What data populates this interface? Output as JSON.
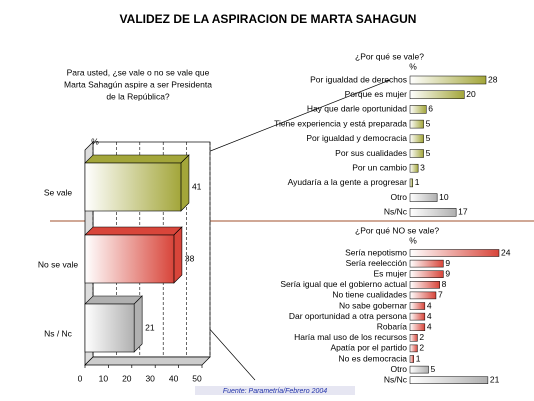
{
  "chart_data": [
    {
      "type": "barh",
      "title": "VALIDEZ DE LA ASPIRACION DE MARTA SAHAGUN",
      "question": [
        "Para usted, ¿se vale o no se vale que",
        "Marta Sahagún aspire a ser Presidenta",
        "de la República?"
      ],
      "source": "Fuente: Parametría/Febrero 2004",
      "axis_label": "%",
      "categories": [
        "Se vale",
        "No se vale",
        "Ns / Nc"
      ],
      "values": [
        41,
        38,
        21
      ],
      "colors": [
        "#a3a63a",
        "#d8453a",
        "#b0b0b0"
      ],
      "xlim": [
        0,
        50
      ],
      "xticks": [
        0,
        10,
        20,
        30,
        40,
        50
      ],
      "grid": true
    },
    {
      "type": "barh",
      "title": "¿Por qué se vale?",
      "axis_label": "%",
      "categories": [
        "Por igualdad de derechos",
        "Porque es mujer",
        "Hay que darle oportunidad",
        "Tiene experiencia y está preparada",
        "Por igualdad y democracia",
        "Por sus cualidades",
        "Por un cambio",
        "Ayudaría a la gente a progresar",
        "Otro",
        "Ns/Nc"
      ],
      "values": [
        28,
        20,
        6,
        5,
        5,
        5,
        3,
        1,
        10,
        17
      ],
      "colors": [
        "#a3a63a",
        "#a3a63a",
        "#a3a63a",
        "#a3a63a",
        "#a3a63a",
        "#a3a63a",
        "#a3a63a",
        "#a3a63a",
        "#b0b0b0",
        "#b0b0b0"
      ]
    },
    {
      "type": "barh",
      "title": "¿Por qué NO se vale?",
      "axis_label": "%",
      "categories": [
        "Sería nepotismo",
        "Sería reelección",
        "Es mujer",
        "Sería igual que el gobierno actual",
        "No tiene cualidades",
        "No sabe gobernar",
        "Dar oportunidad a otra persona",
        "Robaría",
        "Haría mal uso de los recursos",
        "Apatía por el partido",
        "No es democracia",
        "Otro",
        "Ns/Nc"
      ],
      "values": [
        24,
        9,
        9,
        8,
        7,
        4,
        4,
        4,
        2,
        2,
        1,
        5,
        21
      ],
      "colors": [
        "#d8453a",
        "#d8453a",
        "#d8453a",
        "#d8453a",
        "#d8453a",
        "#d8453a",
        "#d8453a",
        "#d8453a",
        "#d8453a",
        "#d8453a",
        "#d8453a",
        "#b0b0b0",
        "#b0b0b0"
      ]
    }
  ]
}
